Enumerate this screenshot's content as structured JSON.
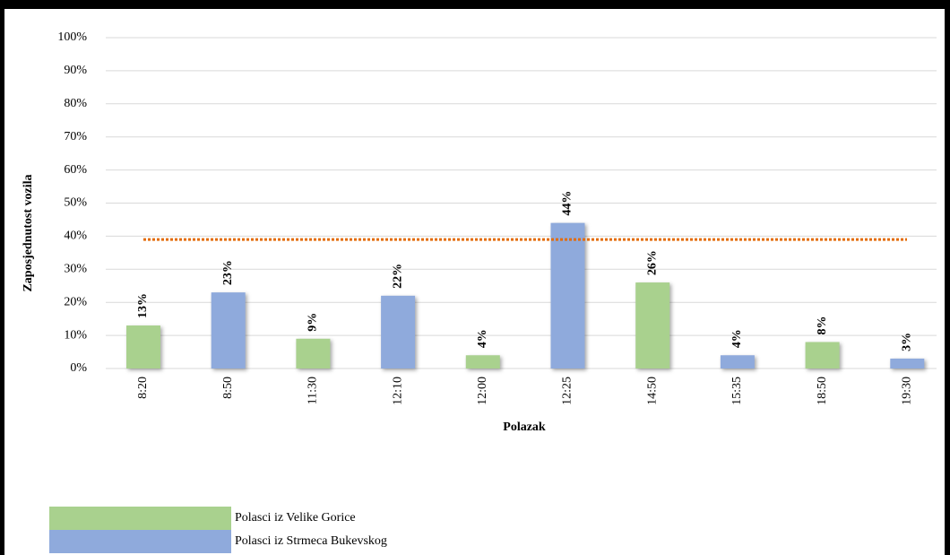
{
  "chart_data": {
    "type": "bar",
    "y_axis_label": "Zaposjednutost vozila",
    "x_axis_label": "Polazak",
    "categories": [
      "8:20",
      "8:50",
      "11:30",
      "12:10",
      "12:00",
      "12:25",
      "14:50",
      "15:35",
      "18:50",
      "19:30"
    ],
    "series": [
      {
        "name": "Polasci iz Velike Gorice",
        "color": "#a9d18e",
        "values": [
          13,
          null,
          9,
          null,
          4,
          null,
          26,
          null,
          8,
          null
        ],
        "value_labels": [
          "13%",
          null,
          "9%",
          null,
          "4%",
          null,
          "26%",
          null,
          "8%",
          null
        ]
      },
      {
        "name": "Polasci iz Strmeca Bukevskog",
        "color": "#8faadc",
        "values": [
          null,
          23,
          null,
          22,
          null,
          44,
          null,
          4,
          null,
          3
        ],
        "value_labels": [
          null,
          "23%",
          null,
          "22%",
          null,
          "44%",
          null,
          "4%",
          null,
          "3%"
        ]
      }
    ],
    "ylim": [
      0,
      100
    ],
    "yticks": [
      {
        "value": 0,
        "label": "0%"
      },
      {
        "value": 10,
        "label": "10%"
      },
      {
        "value": 20,
        "label": "20%"
      },
      {
        "value": 30,
        "label": "30%"
      },
      {
        "value": 40,
        "label": "40%"
      },
      {
        "value": 50,
        "label": "50%"
      },
      {
        "value": 60,
        "label": "60%"
      },
      {
        "value": 70,
        "label": "70%"
      },
      {
        "value": 80,
        "label": "80%"
      },
      {
        "value": 90,
        "label": "90%"
      },
      {
        "value": 100,
        "label": "100%"
      }
    ],
    "grid": true,
    "reference_line": {
      "value": 39,
      "color": "#e36c0a"
    }
  }
}
